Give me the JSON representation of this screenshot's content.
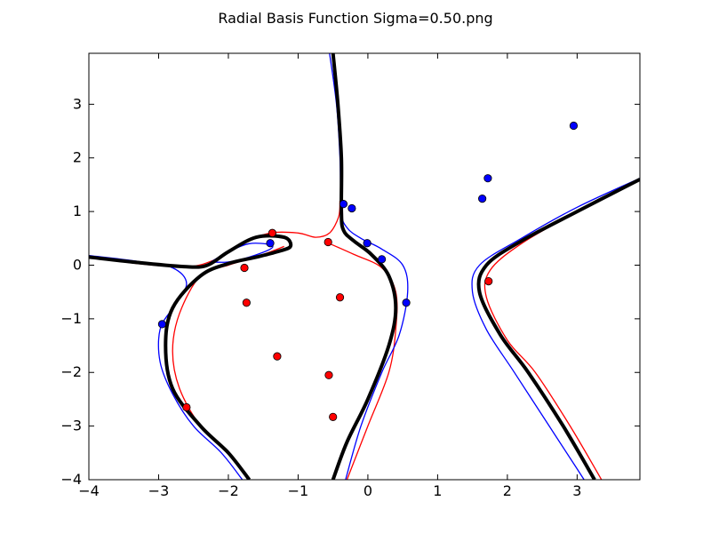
{
  "chart_data": {
    "type": "scatter",
    "title": "Radial Basis Function Sigma=0.50.png",
    "xlabel": "",
    "ylabel": "",
    "xlim": [
      -4,
      3.9
    ],
    "ylim": [
      -4,
      3.95
    ],
    "x_ticks": [
      -4,
      -3,
      -2,
      -1,
      0,
      1,
      2,
      3
    ],
    "y_ticks": [
      -4,
      -3,
      -2,
      -1,
      0,
      1,
      2,
      3
    ],
    "x_tick_labels": [
      "−4",
      "−3",
      "−2",
      "−1",
      "0",
      "1",
      "2",
      "3"
    ],
    "y_tick_labels": [
      "−4",
      "−3",
      "−2",
      "−1",
      "0",
      "1",
      "2",
      "3"
    ],
    "grid": false,
    "colors": {
      "class_a": "#0000ff",
      "class_b": "#ff0000",
      "boundary": "#000000",
      "margin_a": "#0000ff",
      "margin_b": "#ff0000"
    },
    "series": [
      {
        "points": [
          {
            "x": 2.95,
            "y": 2.6
          },
          {
            "x": 1.72,
            "y": 1.62
          },
          {
            "x": 1.64,
            "y": 1.24
          },
          {
            "x": -0.35,
            "y": 1.14
          },
          {
            "x": -0.23,
            "y": 1.06
          },
          {
            "x": -0.01,
            "y": 0.41
          },
          {
            "x": 0.2,
            "y": 0.11
          },
          {
            "x": 0.55,
            "y": -0.7
          },
          {
            "x": -1.4,
            "y": 0.41
          },
          {
            "x": -2.95,
            "y": -1.1
          }
        ]
      },
      {
        "points": [
          {
            "x": -1.37,
            "y": 0.6
          },
          {
            "x": -0.57,
            "y": 0.43
          },
          {
            "x": -1.77,
            "y": -0.05
          },
          {
            "x": -0.4,
            "y": -0.6
          },
          {
            "x": -1.74,
            "y": -0.7
          },
          {
            "x": -1.3,
            "y": -1.7
          },
          {
            "x": 1.73,
            "y": -0.3
          },
          {
            "x": -0.56,
            "y": -2.05
          },
          {
            "x": -2.6,
            "y": -2.65
          },
          {
            "x": -0.5,
            "y": -2.83
          }
        ]
      }
    ],
    "curves": {
      "boundary": [
        [
          [
            -0.5,
            3.95
          ],
          [
            -0.43,
            3.0
          ],
          [
            -0.38,
            2.0
          ],
          [
            -0.38,
            1.0
          ],
          [
            -0.35,
            0.65
          ],
          [
            -0.2,
            0.45
          ],
          [
            0.05,
            0.2
          ],
          [
            0.3,
            -0.2
          ],
          [
            0.4,
            -0.8
          ],
          [
            0.3,
            -1.5
          ],
          [
            0.0,
            -2.5
          ],
          [
            -0.3,
            -3.3
          ],
          [
            -0.5,
            -4.0
          ]
        ],
        [
          [
            -4.0,
            0.15
          ],
          [
            -3.3,
            0.05
          ],
          [
            -2.6,
            -0.03
          ],
          [
            -2.3,
            0.0
          ],
          [
            -2.0,
            0.25
          ],
          [
            -1.6,
            0.52
          ],
          [
            -1.2,
            0.52
          ],
          [
            -1.11,
            0.35
          ],
          [
            -1.3,
            0.25
          ],
          [
            -1.6,
            0.15
          ],
          [
            -2.0,
            0.03
          ],
          [
            -2.4,
            -0.2
          ],
          [
            -2.8,
            -0.8
          ],
          [
            -2.9,
            -1.5
          ],
          [
            -2.8,
            -2.3
          ],
          [
            -2.4,
            -3.0
          ],
          [
            -2.0,
            -3.5
          ],
          [
            -1.7,
            -4.0
          ]
        ],
        [
          [
            3.9,
            1.6
          ],
          [
            3.0,
            1.0
          ],
          [
            2.2,
            0.45
          ],
          [
            1.7,
            0.0
          ],
          [
            1.6,
            -0.5
          ],
          [
            1.9,
            -1.3
          ],
          [
            2.3,
            -2.0
          ],
          [
            2.8,
            -3.0
          ],
          [
            3.25,
            -4.0
          ]
        ]
      ],
      "margin_a": [
        [
          [
            -0.55,
            3.95
          ],
          [
            -0.45,
            3.0
          ],
          [
            -0.4,
            2.0
          ],
          [
            -0.38,
            1.0
          ],
          [
            -0.3,
            0.7
          ],
          [
            -0.1,
            0.5
          ],
          [
            0.2,
            0.3
          ],
          [
            0.5,
            0.0
          ],
          [
            0.57,
            -0.5
          ],
          [
            0.45,
            -1.3
          ],
          [
            0.2,
            -2.0
          ],
          [
            -0.1,
            -3.0
          ],
          [
            -0.32,
            -4.0
          ]
        ],
        [
          [
            -4.0,
            0.18
          ],
          [
            -3.3,
            0.07
          ],
          [
            -2.8,
            -0.05
          ],
          [
            -2.6,
            -0.35
          ],
          [
            -2.8,
            -0.8
          ],
          [
            -2.98,
            -1.2
          ],
          [
            -2.98,
            -1.8
          ],
          [
            -2.8,
            -2.4
          ],
          [
            -2.5,
            -3.0
          ],
          [
            -2.1,
            -3.5
          ],
          [
            -1.8,
            -4.0
          ]
        ],
        [
          [
            -2.25,
            0.06
          ],
          [
            -2.0,
            0.25
          ],
          [
            -1.7,
            0.4
          ],
          [
            -1.4,
            0.38
          ],
          [
            -1.4,
            0.3
          ],
          [
            -1.7,
            0.15
          ],
          [
            -2.0,
            0.06
          ],
          [
            -2.25,
            0.06
          ]
        ],
        [
          [
            3.9,
            1.62
          ],
          [
            3.0,
            1.08
          ],
          [
            2.2,
            0.5
          ],
          [
            1.6,
            0.0
          ],
          [
            1.5,
            -0.5
          ],
          [
            1.7,
            -1.2
          ],
          [
            2.1,
            -2.0
          ],
          [
            2.6,
            -3.0
          ],
          [
            3.0,
            -3.8
          ],
          [
            3.1,
            -4.0
          ]
        ]
      ],
      "margin_b": [
        [
          [
            -4.0,
            0.15
          ],
          [
            -3.3,
            0.03
          ],
          [
            -2.6,
            -0.03
          ],
          [
            -2.2,
            0.1
          ],
          [
            -1.8,
            0.4
          ],
          [
            -1.4,
            0.6
          ],
          [
            -1.0,
            0.6
          ],
          [
            -0.75,
            0.52
          ],
          [
            -0.55,
            0.6
          ],
          [
            -0.42,
            0.9
          ],
          [
            -0.4,
            1.2
          ]
        ],
        [
          [
            -0.6,
            0.43
          ],
          [
            -0.2,
            0.2
          ],
          [
            0.2,
            -0.05
          ],
          [
            0.4,
            -0.5
          ],
          [
            0.4,
            -1.2
          ],
          [
            0.3,
            -2.0
          ],
          [
            0.0,
            -3.0
          ],
          [
            -0.3,
            -4.0
          ]
        ],
        [
          [
            -1.2,
            0.35
          ],
          [
            -1.5,
            0.2
          ],
          [
            -2.0,
            0.0
          ],
          [
            -2.4,
            -0.2
          ],
          [
            -2.7,
            -0.9
          ],
          [
            -2.8,
            -1.6
          ],
          [
            -2.7,
            -2.3
          ],
          [
            -2.4,
            -3.0
          ],
          [
            -2.0,
            -3.5
          ],
          [
            -1.7,
            -4.0
          ]
        ],
        [
          [
            3.9,
            1.6
          ],
          [
            3.0,
            1.0
          ],
          [
            2.2,
            0.4
          ],
          [
            1.75,
            -0.1
          ],
          [
            1.7,
            -0.6
          ],
          [
            2.0,
            -1.4
          ],
          [
            2.4,
            -2.0
          ],
          [
            2.9,
            -3.0
          ],
          [
            3.35,
            -4.0
          ]
        ]
      ]
    }
  }
}
